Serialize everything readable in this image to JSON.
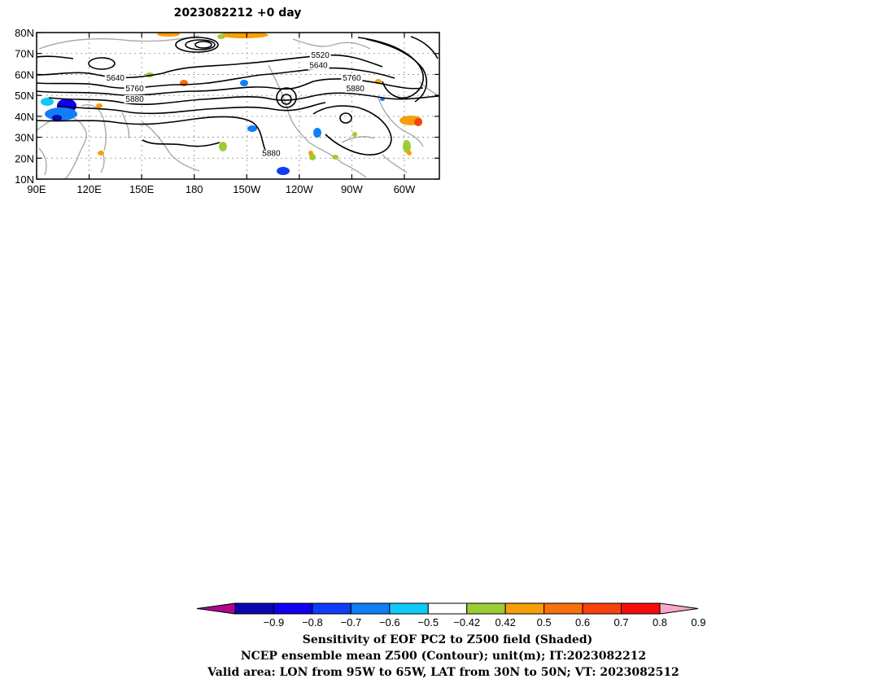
{
  "chart_data": {
    "type": "heatmap",
    "title": "2023082212 +0 day",
    "x_ticks": [
      "90E",
      "120E",
      "150E",
      "180",
      "150W",
      "120W",
      "90W",
      "60W"
    ],
    "y_ticks": [
      "10N",
      "20N",
      "30N",
      "40N",
      "50N",
      "60N",
      "70N",
      "80N"
    ],
    "xlim": [
      90,
      320
    ],
    "ylim": [
      10,
      80
    ],
    "grid": "on",
    "contour_labels": [
      {
        "text": "5520",
        "lon": 252,
        "lat": 68
      },
      {
        "text": "5640",
        "lon": 251,
        "lat": 63
      },
      {
        "text": "5640",
        "lon": 135,
        "lat": 57
      },
      {
        "text": "5760",
        "lon": 146,
        "lat": 52
      },
      {
        "text": "5880",
        "lon": 146,
        "lat": 47
      },
      {
        "text": "5760",
        "lon": 270,
        "lat": 57
      },
      {
        "text": "5880",
        "lon": 272,
        "lat": 52
      },
      {
        "text": "5880",
        "lon": 224,
        "lat": 21
      }
    ],
    "colorbar": {
      "labels": [
        "-0.9",
        "-0.8",
        "-0.7",
        "-0.6",
        "-0.5",
        "-0.42",
        "0.42",
        "0.5",
        "0.6",
        "0.7",
        "0.8",
        "0.9"
      ],
      "colors": [
        "#b0068c",
        "#0b06b0",
        "#0f00ee",
        "#0f3cf5",
        "#0f7ef7",
        "#0fc9f7",
        "#ffffff",
        "#9ccc34",
        "#f79f0b",
        "#f7700b",
        "#f7420b",
        "#f70b0b",
        "#f7a8c9"
      ]
    }
  },
  "captions": {
    "line1": "Sensitivity of EOF PC2 to Z500 field (Shaded)",
    "line2": "NCEP ensemble mean Z500 (Contour); unit(m); IT:2023082212",
    "line3": "Valid area: LON from 95W to 65W, LAT from 30N to 50N; VT: 2023082512"
  }
}
